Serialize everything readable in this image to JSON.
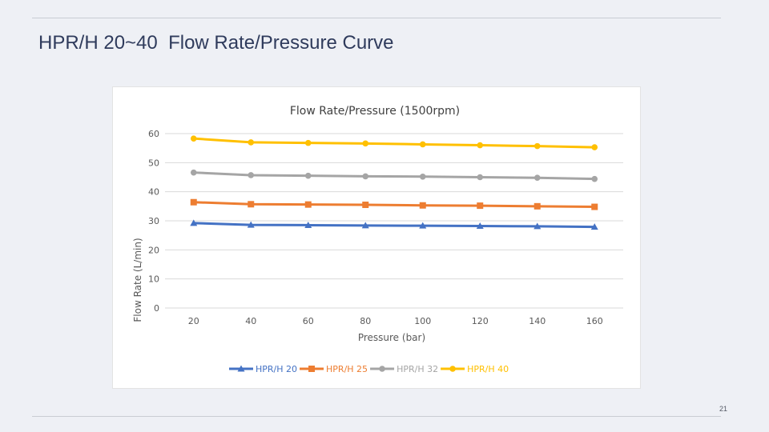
{
  "slide": {
    "title": "HPR/H 20~40  Flow Rate/Pressure Curve",
    "page_number": "21"
  },
  "chart_data": {
    "type": "line",
    "title": "Flow Rate/Pressure  (1500rpm)",
    "xlabel": "Pressure (bar)",
    "ylabel": "Flow Rate  (L/min)",
    "categories": [
      "20",
      "40",
      "60",
      "80",
      "100",
      "120",
      "140",
      "160"
    ],
    "yticks": [
      "0",
      "10",
      "20",
      "30",
      "40",
      "50",
      "60"
    ],
    "ylim": [
      0,
      60
    ],
    "grid": true,
    "legend_position": "bottom",
    "series": [
      {
        "name": "HPR/H 20",
        "color": "#4472c4",
        "marker": "triangle",
        "values": [
          29.2,
          28.6,
          28.5,
          28.4,
          28.3,
          28.2,
          28.1,
          27.9
        ]
      },
      {
        "name": "HPR/H 25",
        "color": "#ed7d31",
        "marker": "square",
        "values": [
          36.4,
          35.7,
          35.6,
          35.5,
          35.3,
          35.2,
          35.0,
          34.8
        ]
      },
      {
        "name": "HPR/H 32",
        "color": "#a5a5a5",
        "marker": "circle",
        "values": [
          46.6,
          45.7,
          45.5,
          45.3,
          45.2,
          45.0,
          44.8,
          44.4
        ]
      },
      {
        "name": "HPR/H 40",
        "color": "#ffc000",
        "marker": "circle",
        "values": [
          58.3,
          57.0,
          56.8,
          56.6,
          56.3,
          56.0,
          55.7,
          55.3
        ]
      }
    ]
  }
}
